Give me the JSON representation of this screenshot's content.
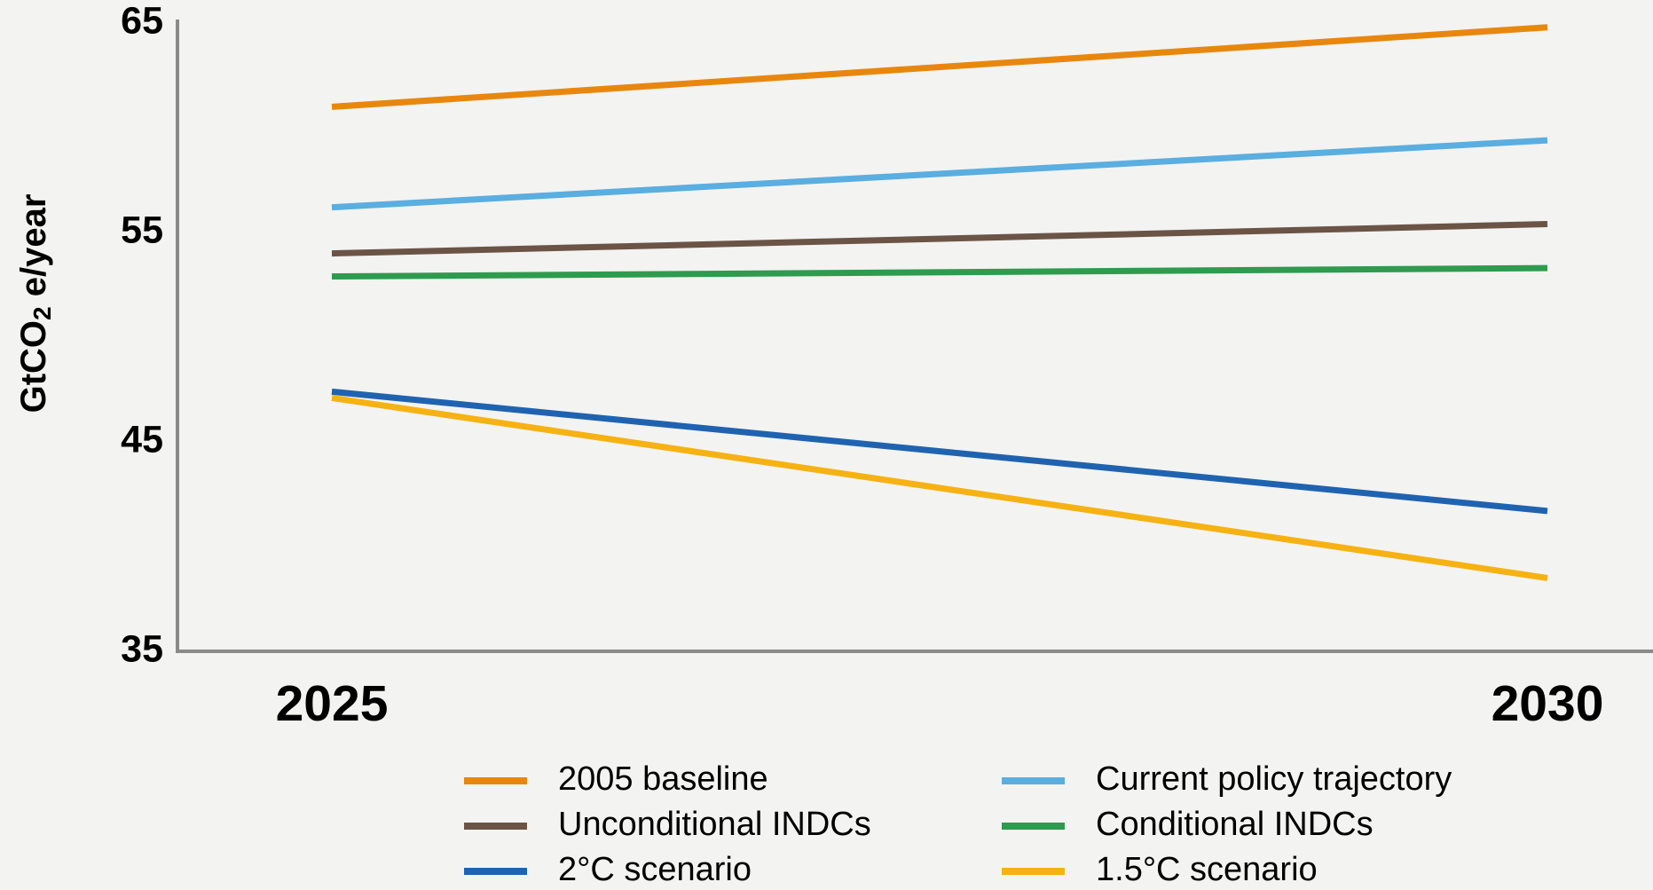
{
  "chart_data": {
    "type": "line",
    "y_label_parts": [
      "GtCO",
      "2",
      " e/year"
    ],
    "categories": [
      "2025",
      "2030"
    ],
    "series": [
      {
        "name": "2005 baseline",
        "color": "#e8870e",
        "values": [
          61.0,
          64.8
        ]
      },
      {
        "name": "Current policy trajectory",
        "color": "#5aaee0",
        "values": [
          56.2,
          59.4
        ]
      },
      {
        "name": "Unconditional INDCs",
        "color": "#6b5446",
        "values": [
          54.0,
          55.4
        ]
      },
      {
        "name": "Conditional INDCs",
        "color": "#2e9b4e",
        "values": [
          52.9,
          53.3
        ]
      },
      {
        "name": "2°C scenario",
        "color": "#1f63b0",
        "values": [
          47.4,
          41.7
        ]
      },
      {
        "name": "1.5°C scenario",
        "color": "#f6b213",
        "values": [
          47.1,
          38.5
        ]
      }
    ],
    "ylim": [
      35,
      65
    ],
    "yticks": [
      35,
      45,
      55,
      65
    ],
    "legend_columns": 2
  }
}
